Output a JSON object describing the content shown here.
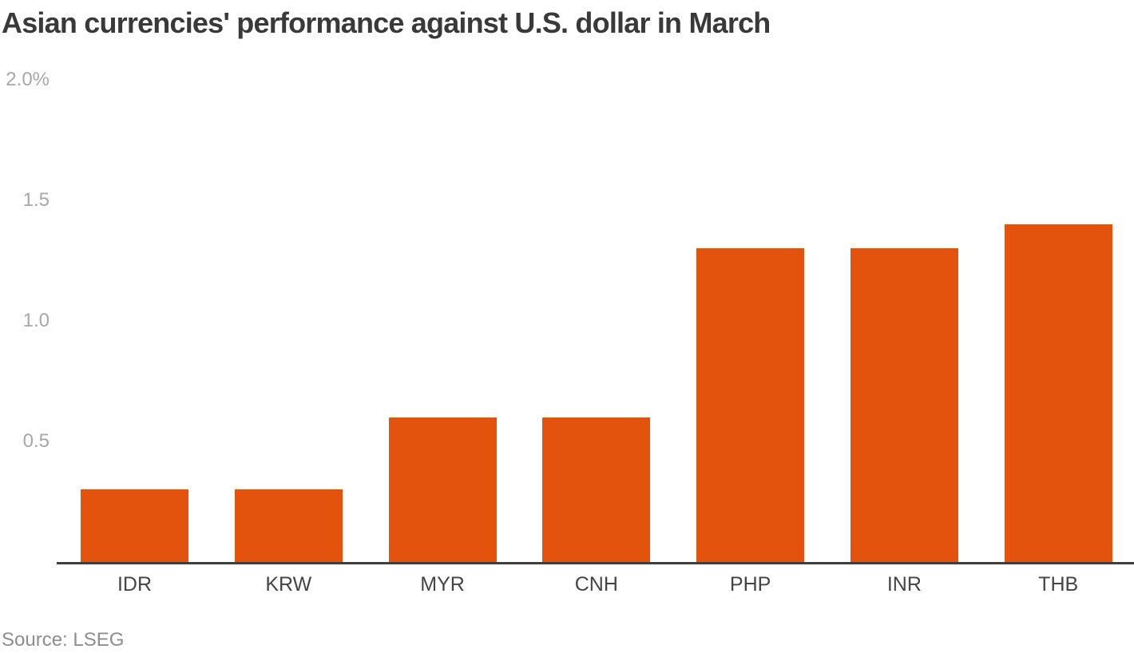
{
  "header": {
    "title": "Asian currencies' performance against U.S. dollar in March"
  },
  "footer": {
    "source": "Source: LSEG"
  },
  "chart_data": {
    "type": "bar",
    "title": "Asian currencies' performance against U.S. dollar in March",
    "categories": [
      "IDR",
      "KRW",
      "MYR",
      "CNH",
      "PHP",
      "INR",
      "THB"
    ],
    "values": [
      0.3,
      0.3,
      0.6,
      0.6,
      1.3,
      1.3,
      1.4
    ],
    "unit": "%",
    "xlabel": "",
    "ylabel": "",
    "ylim": [
      0,
      2.0
    ],
    "ytick_values": [
      0.5,
      1.0,
      1.5,
      2.0
    ],
    "ytick_labels": [
      "0.5",
      "1.0",
      "1.5",
      "2.0%"
    ],
    "grid": false,
    "legend": "none",
    "source": "Source: LSEG",
    "bar_color": "#e4530e"
  },
  "colors": {
    "bar": "#e4530e",
    "axis_line": "#3e3e3e",
    "title_text": "#393939",
    "ytick_text": "#a7a7a7",
    "xtick_text": "#454545",
    "source_text": "#8e8e8e",
    "background": "#ffffff"
  }
}
